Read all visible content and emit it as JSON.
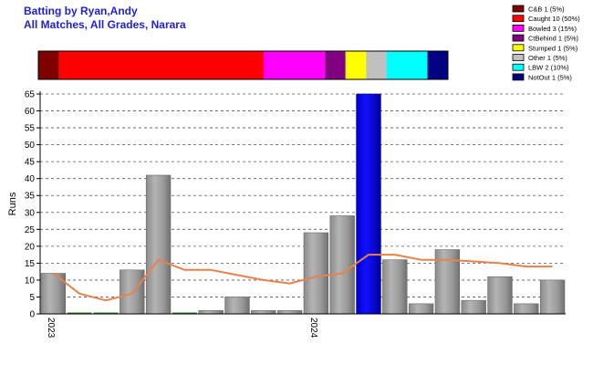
{
  "header": {
    "title": "Batting by Ryan,Andy",
    "subtitle": "All Matches, All Grades, Narara"
  },
  "legend": [
    {
      "label": "C&B 1 (5%)",
      "color": "#7f0000"
    },
    {
      "label": "Caught 10 (50%)",
      "color": "#ff0000"
    },
    {
      "label": "Bowled 3 (15%)",
      "color": "#ff00ff"
    },
    {
      "label": "CtBehind 1 (5%)",
      "color": "#800080"
    },
    {
      "label": "Stumped 1 (5%)",
      "color": "#ffff00"
    },
    {
      "label": "Other 1 (5%)",
      "color": "#c0c0c0"
    },
    {
      "label": "LBW 2 (10%)",
      "color": "#00ffff"
    },
    {
      "label": "NotOut 1 (5%)",
      "color": "#000080"
    }
  ],
  "dismissal_bar": [
    {
      "count": 1,
      "color": "#7f0000"
    },
    {
      "count": 10,
      "color": "#ff0000"
    },
    {
      "count": 3,
      "color": "#ff00ff"
    },
    {
      "count": 1,
      "color": "#800080"
    },
    {
      "count": 1,
      "color": "#ffff00"
    },
    {
      "count": 1,
      "color": "#c0c0c0"
    },
    {
      "count": 2,
      "color": "#00ffff"
    },
    {
      "count": 1,
      "color": "#000080"
    }
  ],
  "chart_data": {
    "type": "bar",
    "ylabel": "Runs",
    "ylim": [
      0,
      65
    ],
    "yticks": [
      0,
      5,
      10,
      15,
      20,
      25,
      30,
      35,
      40,
      45,
      50,
      55,
      60,
      65
    ],
    "grid": true,
    "year_labels": [
      {
        "label": "2023",
        "index": 0
      },
      {
        "label": "2024",
        "index": 10
      }
    ],
    "values": [
      12,
      0,
      0,
      13,
      41,
      0,
      1,
      5,
      1,
      1,
      24,
      29,
      65,
      16,
      3,
      19,
      4,
      11,
      3,
      10
    ],
    "highlight_index": 12,
    "bar_color": "#a0a0a0",
    "highlight_color": "#0000ff",
    "average_line": [
      12,
      6,
      4,
      6,
      16,
      13,
      13,
      11.5,
      10,
      9,
      11,
      12,
      17.5,
      17.5,
      16,
      16,
      15.5,
      15,
      14,
      14
    ],
    "average_color": "#e8824a"
  }
}
